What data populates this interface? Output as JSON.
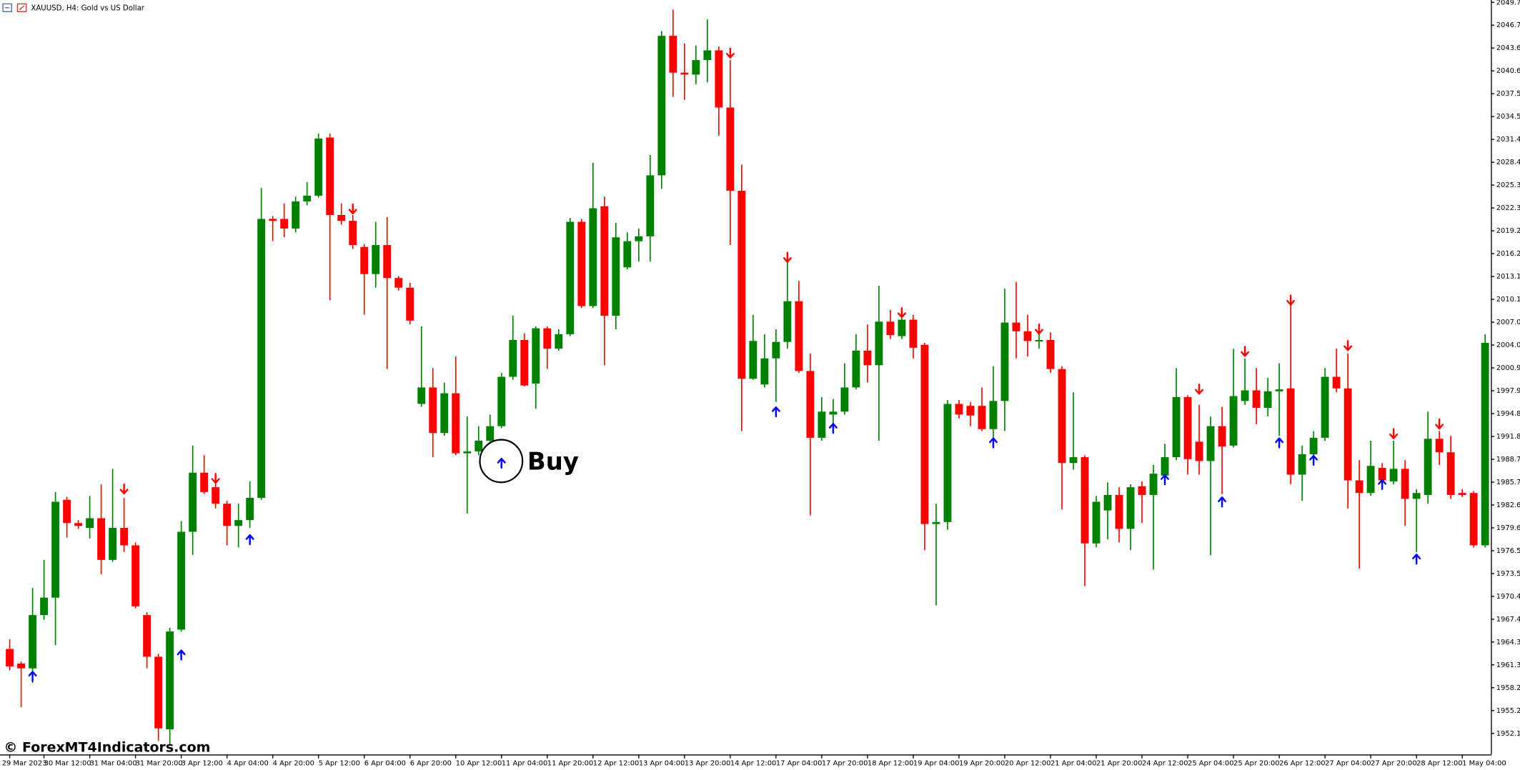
{
  "chart_data": {
    "type": "candlestick",
    "title": "XAUUSD, H4:  Gold vs US Dollar",
    "annotation": "Buy",
    "watermark": "© ForexMT4Indicators.com",
    "up_color": "#008000",
    "down_color": "#ff0000",
    "buy_color": "#0000ff",
    "sell_color": "#ff0000",
    "grid": false,
    "ylim": [
      1949.34,
      2050.06
    ],
    "yticks": [
      2049.75,
      {
        "value": 2046.7,
        "label": "2046.70"
      },
      2043.65,
      {
        "value": 2040.6,
        "label": "2040.60"
      },
      2037.55,
      {
        "value": 2034.5,
        "label": "2034.50"
      },
      2031.45,
      {
        "value": 2028.4,
        "label": "2028.40"
      },
      2025.35,
      {
        "value": 2022.3,
        "label": "2022.30"
      },
      2019.25,
      {
        "value": 2016.2,
        "label": "2016.20"
      },
      2013.15,
      {
        "value": 2010.1,
        "label": "2010.10"
      },
      2007.05,
      {
        "value": 2004,
        "label": "2004.00"
      },
      2000.95,
      {
        "value": 1997.9,
        "label": "1997.90"
      },
      1994.85,
      {
        "value": 1991.8,
        "label": "1991.80"
      },
      1988.75,
      {
        "value": 1985.7,
        "label": "1985.70"
      },
      1982.65,
      {
        "value": 1979.6,
        "label": "1979.60"
      },
      1976.55,
      {
        "value": 1973.5,
        "label": "1973.50"
      },
      1970.45,
      {
        "value": 1967.4,
        "label": "1967.40"
      },
      1964.35,
      {
        "value": 1961.3,
        "label": "1961.30"
      },
      1958.25,
      {
        "value": 1955.2,
        "label": "1955.20"
      },
      1952.15
    ],
    "categories": [
      "29 Mar 2023",
      null,
      null,
      "30 Mar 12:00",
      null,
      null,
      null,
      "31 Mar 04:00",
      null,
      null,
      null,
      "31 Mar 20:00",
      null,
      null,
      null,
      "3 Apr 12:00",
      null,
      null,
      null,
      "4 Apr 04:00",
      null,
      null,
      null,
      "4 Apr 20:00",
      null,
      null,
      null,
      "5 Apr 12:00",
      null,
      null,
      null,
      "6 Apr 04:00",
      null,
      null,
      null,
      "6 Apr 20:00",
      null,
      null,
      null,
      "10 Apr 12:00",
      null,
      null,
      null,
      "11 Apr 04:00",
      null,
      null,
      null,
      "11 Apr 20:00",
      null,
      null,
      null,
      "12 Apr 12:00",
      null,
      null,
      null,
      "13 Apr 04:00",
      null,
      null,
      null,
      "13 Apr 20:00",
      null,
      null,
      null,
      "14 Apr 12:00",
      null,
      null,
      null,
      "17 Apr 04:00",
      null,
      null,
      null,
      "17 Apr 20:00",
      null,
      null,
      null,
      "18 Apr 12:00",
      null,
      null,
      null,
      "19 Apr 04:00",
      null,
      null,
      null,
      "19 Apr 20:00",
      null,
      null,
      null,
      "20 Apr 12:00",
      null,
      null,
      null,
      "21 Apr 04:00",
      null,
      null,
      null,
      "21 Apr 20:00",
      null,
      null,
      null,
      "24 Apr 12:00",
      null,
      null,
      null,
      "25 Apr 04:00",
      null,
      null,
      null,
      "25 Apr 20:00",
      null,
      null,
      null,
      "26 Apr 12:00",
      null,
      null,
      null,
      "27 Apr 04:00",
      null,
      null,
      null,
      "27 Apr 20:00",
      null,
      null,
      null,
      "28 Apr 12:00",
      null,
      null,
      null,
      "1 May 04:00",
      null,
      null
    ],
    "open": [
      1963.43,
      1961.49,
      1960.84,
      1967.95,
      1970.28,
      1983.34,
      1980.24,
      1979.59,
      1980.88,
      1975.32,
      1979.59,
      1977.26,
      1967.95,
      1962.39,
      1952.7,
      1966.01,
      1979.07,
      1986.96,
      1985.02,
      1982.82,
      1979.85,
      1980.63,
      1983.6,
      2020.84,
      2020.84,
      2019.55,
      2023.17,
      2023.94,
      2031.7,
      2021.36,
      2020.58,
      2017.09,
      2013.47,
      2017.35,
      2012.95,
      2011.66,
      1996.14,
      1998.34,
      1992.26,
      1997.56,
      1989.55,
      1989.81,
      1991.23,
      1993.17,
      1999.76,
      2004.68,
      1998.86,
      2006.23,
      2003.51,
      2005.45,
      2020.45,
      2009.2,
      2022.52,
      2007.91,
      2014.37,
      2017.86,
      2018.51,
      2026.66,
      2045.28,
      2040.36,
      2040.1,
      2042.04,
      2043.34,
      2035.71,
      2024.59,
      1999.5,
      1998.73,
      2002.22,
      2004.42,
      2009.85,
      2000.54,
      1991.62,
      1994.72,
      1995.11,
      1998.34,
      2003.25,
      2001.31,
      2007.13,
      2005.19,
      2007.39,
      2004.03,
      1980.11,
      1980.37,
      1996.14,
      1995.88,
      1995.88,
      1992.78,
      1996.53,
      2007.0,
      2005.84,
      2004.55,
      2004.68,
      2000.8,
      1988.25,
      1989.03,
      1977.52,
      1981.92,
      1983.99,
      1979.46,
      1985.15,
      1983.99,
      1986.57,
      1989.03,
      1997.05,
      1991.1,
      1988.51,
      1993.17,
      1990.58,
      1996.53,
      1997.95,
      1995.62,
      1997.82,
      1998.21,
      1986.7,
      1989.42,
      1991.62,
      1999.76,
      1998.21,
      1985.93,
      1984.25,
      1987.61,
      1985.8,
      1987.48,
      1983.47,
      1983.99,
      1991.49,
      1989.68,
      1984.25,
      1984.25,
      1977.26
    ],
    "high": [
      1964.72,
      1961.75,
      1971.57,
      1975.32,
      1984.38,
      1983.73,
      1980.63,
      1983.86,
      1985.39,
      1987.48,
      1983.6,
      1977.65,
      1968.34,
      1962.78,
      1966.27,
      1980.5,
      1990.58,
      1989.29,
      1985.67,
      1983.21,
      1982.82,
      1985.8,
      2024.97,
      2021.23,
      2022.91,
      2023.81,
      2025.75,
      2032.22,
      2032.22,
      2022.91,
      2021.36,
      2017.48,
      2020.45,
      2021.1,
      2013.21,
      2012.3,
      2006.48,
      2000.93,
      1998.99,
      2002.48,
      1994.46,
      1993.17,
      1994.72,
      2000.28,
      2007.91,
      2005.58,
      2006.48,
      2006.48,
      2006.1,
      2020.97,
      2020.84,
      2028.34,
      2023.81,
      2020.32,
      2019.03,
      2019.55,
      2029.37,
      2045.92,
      2048.77,
      2044.24,
      2043.98,
      2047.47,
      2043.85,
      2042.04,
      2028.08,
      2008.04,
      2005.45,
      2006.1,
      2015.15,
      2012.56,
      2002.87,
      1997.05,
      1996.79,
      2001.57,
      2005.45,
      2006.74,
      2011.92,
      2008.68,
      2007.91,
      2008.04,
      2004.29,
      1982.82,
      1996.66,
      1996.66,
      1996.4,
      1998.34,
      2001.18,
      2011.53,
      2012.43,
      2008.04,
      2005.45,
      2005.71,
      2001.18,
      1997.69,
      1989.29,
      1983.86,
      1985.67,
      1985.02,
      1985.41,
      1985.8,
      1987.99,
      1990.84,
      2000.93,
      1997.31,
      1996.01,
      1994.46,
      1995.75,
      2003.51,
      2002.22,
      2000.93,
      1999.63,
      2001.57,
      2009.33,
      1990.58,
      1992.52,
      2000.93,
      2003.51,
      2002.87,
      1988.64,
      1991.23,
      1988.25,
      1991.23,
      1988.64,
      1984.76,
      1995.11,
      1992.52,
      1991.88,
      1984.76,
      1984.5,
      2005.45
    ],
    "low": [
      1960.58,
      1955.67,
      1958.9,
      1967.31,
      1963.95,
      1978.3,
      1979.46,
      1978.17,
      1973.38,
      1975.06,
      1976.36,
      1968.86,
      1960.84,
      1951.14,
      1950.5,
      1965.76,
      1975.97,
      1984.12,
      1982.18,
      1977.26,
      1977.0,
      1979.59,
      1983.34,
      2017.86,
      2018.38,
      2019.03,
      2022.65,
      2023.68,
      2009.97,
      2020.06,
      2016.83,
      2008.04,
      2011.66,
      2000.8,
      2011.27,
      2006.74,
      1995.75,
      1989.03,
      1991.88,
      1989.29,
      1981.53,
      1989.29,
      1990.84,
      1992.91,
      1999.37,
      1998.47,
      1995.49,
      2000.8,
      2003.25,
      2005.19,
      2008.94,
      2008.94,
      2001.31,
      2006.1,
      2014.11,
      2015.15,
      2015.15,
      2024.85,
      2037.13,
      2036.74,
      2038.81,
      2039.07,
      2031.96,
      2017.35,
      1992.52,
      1999.37,
      1998.34,
      1996.4,
      2003.51,
      2000.28,
      1981.27,
      1991.23,
      1993.56,
      1994.72,
      1998.08,
      1998.99,
      1991.23,
      2004.81,
      2004.81,
      2002.22,
      1976.62,
      1969.25,
      1979.33,
      1994.2,
      1993.17,
      1992.52,
      1991.62,
      1992.52,
      2002.22,
      2002.48,
      2003.51,
      2000.28,
      1982.05,
      1987.35,
      1971.83,
      1977.0,
      1978.04,
      1977.65,
      1976.62,
      1980.24,
      1974.03,
      1986.05,
      1988.64,
      1986.7,
      1986.7,
      1975.97,
      1984.12,
      1990.32,
      1996.01,
      1993.43,
      1994.46,
      1991.88,
      1985.41,
      1983.21,
      1989.03,
      1991.23,
      1997.69,
      1982.18,
      1974.16,
      1983.86,
      1985.41,
      1985.41,
      1979.85,
      1976.36,
      1982.82,
      1987.99,
      1983.47,
      1983.73,
      1977.0,
      1977.0
    ],
    "close": [
      1961.1,
      1960.84,
      1967.95,
      1970.28,
      1983.08,
      1980.24,
      1979.85,
      1980.88,
      1975.32,
      1979.59,
      1977.26,
      1969.12,
      1962.39,
      1952.83,
      1965.76,
      1979.07,
      1986.96,
      1984.38,
      1982.82,
      1979.85,
      1980.63,
      1983.6,
      2020.84,
      2020.58,
      2019.55,
      2023.17,
      2023.94,
      2031.57,
      2021.36,
      2020.58,
      2017.35,
      2013.47,
      2017.35,
      2012.95,
      2011.66,
      2007.26,
      1998.34,
      1992.26,
      1997.56,
      1989.55,
      1989.81,
      1991.23,
      1993.17,
      1999.76,
      2004.68,
      1998.6,
      2006.23,
      2003.51,
      2005.45,
      2020.45,
      2009.2,
      2022.26,
      2007.91,
      2018.38,
      2017.86,
      2018.51,
      2026.66,
      2045.28,
      2040.36,
      2040.1,
      2042.04,
      2043.34,
      2035.71,
      2024.59,
      1999.5,
      2004.55,
      2002.22,
      2004.42,
      2009.85,
      2000.54,
      1991.62,
      1995.11,
      1995.11,
      1998.34,
      2003.25,
      2001.31,
      2007.13,
      2005.32,
      2007.39,
      2003.64,
      1980.11,
      1980.37,
      1996.14,
      1994.72,
      1994.59,
      1992.78,
      1996.53,
      2007.0,
      2005.84,
      2004.55,
      2004.68,
      2000.8,
      1988.25,
      1989.03,
      1977.52,
      1983.08,
      1983.99,
      1979.46,
      1985.02,
      1983.99,
      1986.83,
      1989.03,
      1997.05,
      1988.77,
      1988.51,
      1993.17,
      1990.45,
      1997.18,
      1997.95,
      1995.62,
      1997.82,
      1998.08,
      1986.7,
      1989.42,
      1991.62,
      1999.76,
      1998.21,
      1985.93,
      1984.25,
      1987.87,
      1985.93,
      1987.48,
      1983.47,
      1984.25,
      1991.49,
      1989.68,
      1983.99,
      1983.99,
      1977.26,
      2004.29
    ],
    "buy_signals": [
      null,
      null,
      1959.81,
      null,
      null,
      null,
      null,
      null,
      null,
      null,
      null,
      null,
      null,
      null,
      null,
      1962.65,
      null,
      null,
      null,
      null,
      null,
      1978.04,
      null,
      null,
      null,
      null,
      null,
      null,
      null,
      null,
      null,
      null,
      null,
      null,
      null,
      null,
      null,
      null,
      null,
      null,
      null,
      null,
      null,
      1988.25,
      null,
      null,
      null,
      null,
      null,
      null,
      null,
      null,
      null,
      null,
      null,
      null,
      null,
      null,
      null,
      null,
      null,
      null,
      null,
      null,
      null,
      null,
      null,
      1995.11,
      null,
      null,
      null,
      null,
      1992.91,
      null,
      null,
      null,
      null,
      null,
      null,
      null,
      null,
      null,
      null,
      null,
      null,
      null,
      1990.97,
      null,
      null,
      null,
      null,
      null,
      null,
      null,
      null,
      null,
      null,
      null,
      null,
      null,
      null,
      1986.05,
      null,
      null,
      null,
      null,
      1983.08,
      null,
      null,
      null,
      null,
      1990.97,
      null,
      null,
      1988.64,
      null,
      null,
      null,
      null,
      null,
      1985.41,
      null,
      null,
      1975.45,
      null,
      null,
      null,
      null,
      null,
      null
    ],
    "sell_signals": [
      null,
      null,
      null,
      null,
      null,
      null,
      null,
      null,
      null,
      null,
      1984.76,
      null,
      null,
      null,
      null,
      null,
      null,
      null,
      1986.18,
      null,
      null,
      null,
      null,
      null,
      null,
      null,
      null,
      null,
      null,
      null,
      2022.13,
      null,
      null,
      null,
      null,
      null,
      null,
      null,
      null,
      null,
      null,
      null,
      null,
      null,
      null,
      null,
      null,
      null,
      null,
      null,
      null,
      null,
      null,
      null,
      null,
      null,
      null,
      null,
      null,
      null,
      null,
      null,
      null,
      2042.95,
      null,
      null,
      null,
      null,
      2015.67,
      null,
      null,
      null,
      null,
      null,
      null,
      null,
      null,
      null,
      2008.3,
      null,
      null,
      null,
      null,
      null,
      null,
      null,
      null,
      null,
      null,
      null,
      2006.1,
      null,
      null,
      null,
      null,
      null,
      null,
      null,
      null,
      null,
      null,
      null,
      null,
      null,
      1998.08,
      null,
      null,
      null,
      2003.12,
      null,
      null,
      null,
      2009.97,
      null,
      null,
      null,
      null,
      2003.9,
      null,
      null,
      null,
      1992.13,
      null,
      null,
      null,
      1993.43,
      null,
      null,
      null,
      null
    ]
  }
}
